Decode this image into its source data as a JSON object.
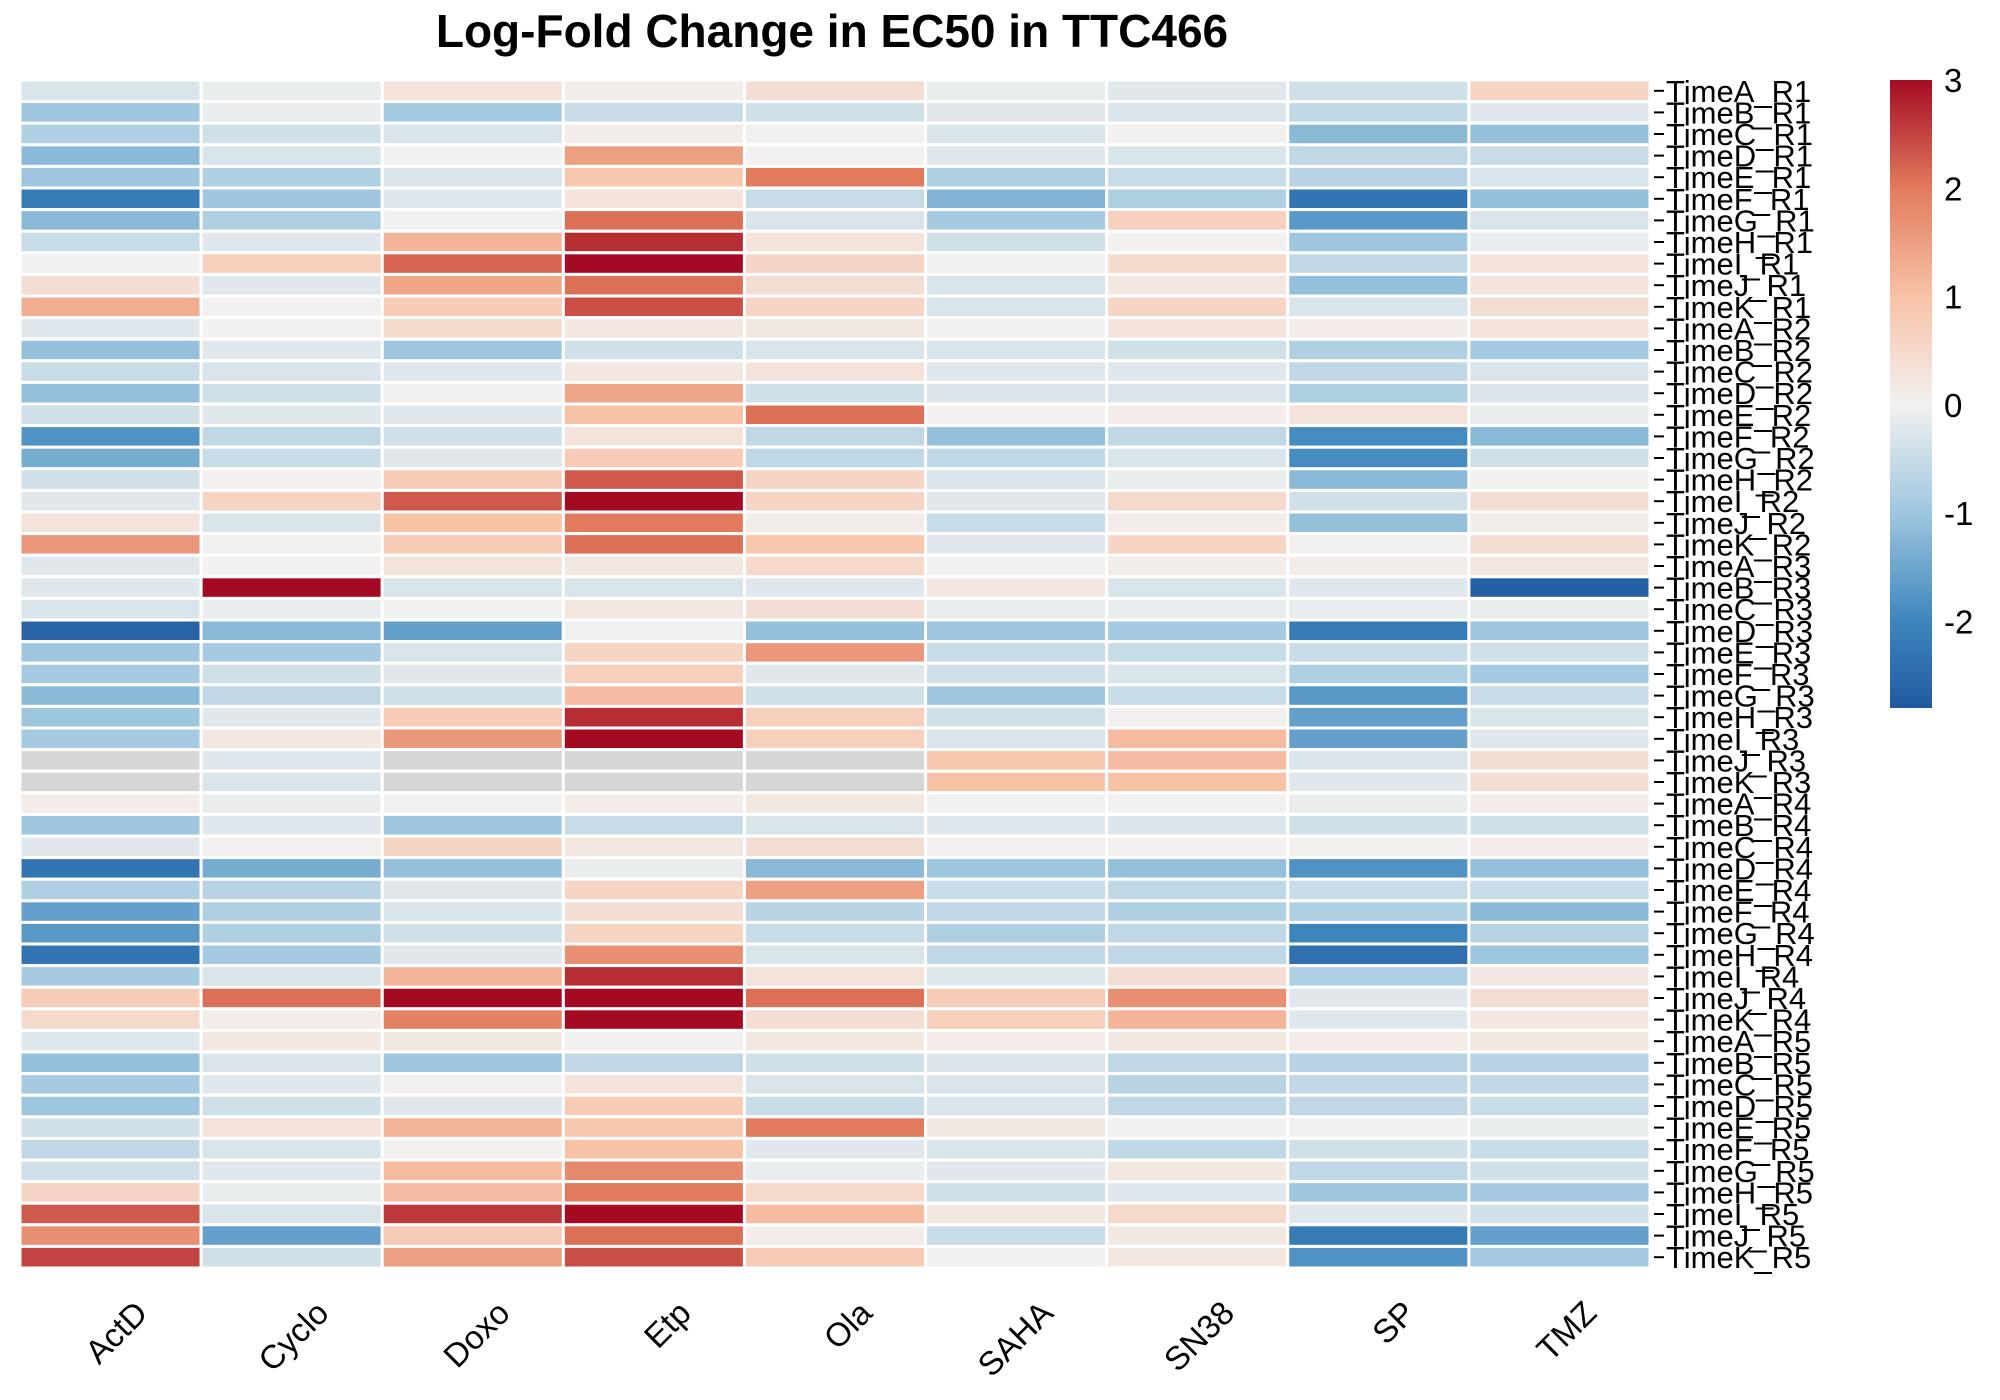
{
  "chart_data": {
    "type": "heatmap",
    "title": "Log-Fold Change in EC50 in TTC466",
    "columns": [
      "ActD",
      "Cyclo",
      "Doxo",
      "Etp",
      "Ola",
      "SAHA",
      "SN38",
      "SP",
      "TMZ"
    ],
    "rows": [
      "TimeA_R1",
      "TimeB_R1",
      "TimeC_R1",
      "TimeD_R1",
      "TimeE_R1",
      "TimeF_R1",
      "TimeG_R1",
      "TimeH_R1",
      "TimeI_R1",
      "TimeJ_R1",
      "TimeK_R1",
      "TimeA_R2",
      "TimeB_R2",
      "TimeC_R2",
      "TimeD_R2",
      "TimeE_R2",
      "TimeF_R2",
      "TimeG_R2",
      "TimeH_R2",
      "TimeI_R2",
      "TimeJ_R2",
      "TimeK_R2",
      "TimeA_R3",
      "TimeB_R3",
      "TimeC_R3",
      "TimeD_R3",
      "TimeE_R3",
      "TimeF_R3",
      "TimeG_R3",
      "TimeH_R3",
      "TimeI_R3",
      "TimeJ_R3",
      "TimeK_R3",
      "TimeA_R4",
      "TimeB_R4",
      "TimeC_R4",
      "TimeD_R4",
      "TimeE_R4",
      "TimeF_R4",
      "TimeG_R4",
      "TimeH_R4",
      "TimeI_R4",
      "TimeJ_R4",
      "TimeK_R4",
      "TimeA_R5",
      "TimeB_R5",
      "TimeC_R5",
      "TimeD_R5",
      "TimeE_R5",
      "TimeF_R5",
      "TimeG_R5",
      "TimeH_R5",
      "TimeI_R5",
      "TimeJ_R5",
      "TimeK_R5"
    ],
    "values": [
      [
        -0.3,
        -0.1,
        0.3,
        0.1,
        0.4,
        -0.1,
        -0.2,
        -0.4,
        0.6
      ],
      [
        -1.0,
        -0.1,
        -0.9,
        -0.5,
        -0.4,
        -0.2,
        -0.3,
        -0.6,
        -0.2
      ],
      [
        -0.8,
        -0.4,
        -0.3,
        0.1,
        0.0,
        -0.3,
        0.0,
        -1.2,
        -1.1
      ],
      [
        -1.2,
        -0.3,
        0.0,
        1.5,
        0.0,
        -0.2,
        -0.3,
        -0.6,
        -0.5
      ],
      [
        -1.0,
        -0.8,
        -0.3,
        0.9,
        2.0,
        -0.8,
        -0.5,
        -0.7,
        -0.3
      ],
      [
        -2.2,
        -1.0,
        -0.2,
        0.3,
        -0.5,
        -1.3,
        -0.8,
        -2.3,
        -1.1
      ],
      [
        -1.2,
        -0.8,
        0.0,
        2.1,
        -0.3,
        -0.9,
        0.7,
        -1.7,
        -0.3
      ],
      [
        -0.5,
        -0.2,
        1.2,
        2.7,
        0.3,
        -0.4,
        0.0,
        -1.0,
        -0.1
      ],
      [
        0.0,
        0.7,
        2.2,
        3.0,
        0.6,
        0.0,
        0.5,
        -0.6,
        0.3
      ],
      [
        0.4,
        -0.2,
        1.4,
        2.1,
        0.4,
        -0.3,
        0.2,
        -1.1,
        0.3
      ],
      [
        1.3,
        0.0,
        0.8,
        2.4,
        0.6,
        -0.3,
        0.6,
        -0.3,
        0.4
      ],
      [
        -0.2,
        0.0,
        0.5,
        0.2,
        0.2,
        0.0,
        0.3,
        0.1,
        0.3
      ],
      [
        -1.1,
        -0.2,
        -1.0,
        -0.4,
        -0.3,
        -0.3,
        -0.4,
        -0.8,
        -0.9
      ],
      [
        -0.5,
        -0.3,
        -0.2,
        0.2,
        0.3,
        -0.2,
        -0.2,
        -0.6,
        -0.3
      ],
      [
        -1.1,
        -0.4,
        0.0,
        1.4,
        -0.4,
        -0.3,
        -0.3,
        -0.8,
        -0.3
      ],
      [
        -0.4,
        -0.2,
        -0.2,
        1.0,
        2.1,
        0.0,
        0.1,
        0.3,
        -0.1
      ],
      [
        -1.8,
        -0.6,
        -0.4,
        0.3,
        -0.6,
        -1.1,
        -0.6,
        -1.9,
        -1.2
      ],
      [
        -1.4,
        -0.5,
        -0.2,
        0.8,
        -0.6,
        -0.6,
        -0.3,
        -1.9,
        -0.4
      ],
      [
        -0.4,
        0.0,
        0.8,
        2.3,
        0.6,
        -0.3,
        -0.1,
        -1.2,
        0.0
      ],
      [
        -0.2,
        0.6,
        2.3,
        3.0,
        0.6,
        -0.2,
        0.5,
        -0.4,
        0.4
      ],
      [
        0.3,
        -0.3,
        1.0,
        2.0,
        0.1,
        -0.5,
        0.1,
        -1.1,
        0.1
      ],
      [
        1.6,
        0.0,
        0.8,
        2.1,
        0.9,
        -0.2,
        0.6,
        0.0,
        0.4
      ],
      [
        -0.2,
        0.0,
        0.3,
        0.2,
        0.5,
        0.0,
        0.1,
        0.1,
        0.2
      ],
      [
        -0.2,
        3.0,
        -0.3,
        -0.3,
        -0.2,
        0.2,
        -0.3,
        -0.2,
        -2.7
      ],
      [
        -0.3,
        -0.1,
        0.0,
        0.2,
        0.4,
        -0.1,
        -0.1,
        -0.1,
        -0.1
      ],
      [
        -2.6,
        -1.2,
        -1.6,
        0.0,
        -1.1,
        -1.0,
        -0.9,
        -2.2,
        -1.0
      ],
      [
        -1.0,
        -0.9,
        -0.3,
        0.6,
        1.6,
        -0.5,
        -0.5,
        -0.5,
        -0.4
      ],
      [
        -0.9,
        -0.4,
        -0.2,
        0.7,
        -0.2,
        -0.4,
        -0.3,
        -0.8,
        -0.9
      ],
      [
        -1.2,
        -0.6,
        -0.4,
        1.1,
        -0.4,
        -1.0,
        -0.5,
        -1.7,
        -0.5
      ],
      [
        -1.0,
        -0.2,
        0.8,
        2.7,
        0.7,
        -0.4,
        0.0,
        -1.6,
        -0.3
      ],
      [
        -0.9,
        0.2,
        1.6,
        3.0,
        0.7,
        -0.3,
        1.1,
        -1.6,
        -0.2
      ],
      [
        null,
        -0.2,
        null,
        null,
        null,
        0.9,
        1.1,
        -0.3,
        0.4
      ],
      [
        null,
        -0.3,
        null,
        null,
        null,
        1.0,
        1.0,
        -0.2,
        0.4
      ],
      [
        0.1,
        -0.1,
        0.0,
        0.1,
        0.2,
        0.0,
        0.0,
        -0.1,
        0.1
      ],
      [
        -1.0,
        -0.2,
        -1.0,
        -0.5,
        -0.3,
        -0.2,
        -0.3,
        -0.4,
        -0.4
      ],
      [
        -0.2,
        0.0,
        0.6,
        0.2,
        0.4,
        0.0,
        0.0,
        0.0,
        0.1
      ],
      [
        -2.3,
        -1.4,
        -1.1,
        -0.1,
        -1.2,
        -1.0,
        -1.1,
        -1.8,
        -1.1
      ],
      [
        -0.8,
        -0.7,
        -0.2,
        0.6,
        1.5,
        -0.5,
        -0.6,
        -0.5,
        -0.5
      ],
      [
        -1.6,
        -0.8,
        -0.3,
        0.4,
        -0.7,
        -0.6,
        -0.8,
        -0.8,
        -1.2
      ],
      [
        -1.7,
        -0.8,
        -0.4,
        0.6,
        -0.5,
        -0.8,
        -0.6,
        -2.0,
        -0.7
      ],
      [
        -2.3,
        -0.9,
        -0.2,
        1.7,
        -0.3,
        -0.6,
        -0.6,
        -2.4,
        -1.0
      ],
      [
        -0.9,
        -0.3,
        1.2,
        2.7,
        0.3,
        -0.2,
        0.4,
        -0.8,
        0.2
      ],
      [
        0.8,
        2.1,
        3.0,
        3.0,
        2.1,
        0.8,
        1.7,
        -0.2,
        0.4
      ],
      [
        0.5,
        0.1,
        1.9,
        3.0,
        0.4,
        0.7,
        1.2,
        -0.2,
        0.2
      ],
      [
        -0.2,
        0.2,
        0.2,
        0.0,
        0.2,
        0.1,
        0.2,
        0.1,
        0.2
      ],
      [
        -1.1,
        -0.3,
        -1.0,
        -0.6,
        -0.4,
        -0.3,
        -0.6,
        -0.7,
        -0.7
      ],
      [
        -0.9,
        -0.2,
        0.0,
        0.3,
        -0.3,
        -0.3,
        -0.7,
        -0.6,
        -0.6
      ],
      [
        -1.0,
        -0.4,
        -0.2,
        0.8,
        -0.5,
        -0.3,
        -0.6,
        -0.6,
        -0.5
      ],
      [
        -0.4,
        0.3,
        1.2,
        0.9,
        2.0,
        0.2,
        0.0,
        0.0,
        -0.1
      ],
      [
        -0.6,
        -0.3,
        0.0,
        1.0,
        -0.2,
        -0.3,
        -0.6,
        -0.4,
        -0.5
      ],
      [
        -0.4,
        -0.2,
        1.1,
        1.8,
        -0.1,
        -0.2,
        0.2,
        -0.6,
        -0.4
      ],
      [
        0.6,
        -0.1,
        1.1,
        2.0,
        0.5,
        -0.4,
        -0.2,
        -1.0,
        -0.9
      ],
      [
        2.3,
        -0.3,
        2.6,
        3.0,
        1.1,
        0.2,
        0.5,
        -0.2,
        -0.4
      ],
      [
        1.7,
        -1.6,
        0.8,
        2.1,
        0.1,
        -0.5,
        0.2,
        -2.2,
        -1.6
      ],
      [
        2.5,
        -0.4,
        1.5,
        2.4,
        0.8,
        0.0,
        0.2,
        -1.8,
        -0.9
      ]
    ],
    "missing_color": "#D6D6D6",
    "color_scale": {
      "min": -2.8,
      "max": 3.0,
      "stops": [
        {
          "v": -2.8,
          "c": "#2259A0"
        },
        {
          "v": -2.0,
          "c": "#3D86BD"
        },
        {
          "v": -1.0,
          "c": "#9EC6DF"
        },
        {
          "v": 0.0,
          "c": "#F2F1F0"
        },
        {
          "v": 1.0,
          "c": "#F8C2A7"
        },
        {
          "v": 2.0,
          "c": "#E27B5D"
        },
        {
          "v": 3.0,
          "c": "#A40B23"
        }
      ]
    },
    "legend": {
      "position": "right",
      "ticks": [
        3,
        2,
        1,
        0,
        -1,
        -2
      ],
      "tick_labels": [
        "3",
        "2",
        "1",
        "0",
        "-1",
        "-2"
      ]
    }
  }
}
